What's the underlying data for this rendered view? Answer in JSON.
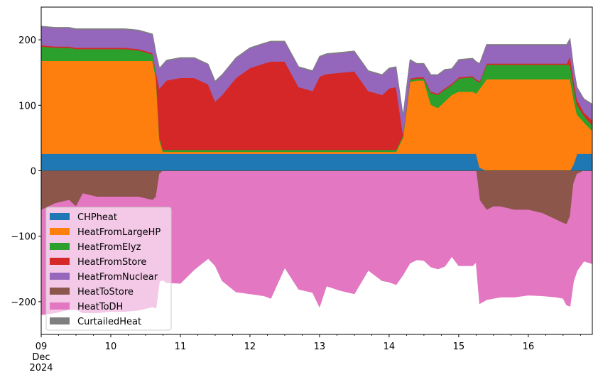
{
  "chart_data": {
    "type": "area",
    "title": "",
    "xlabel": "",
    "ylabel": "",
    "xlim": [
      0,
      7.92
    ],
    "ylim": [
      -250,
      250
    ],
    "x_ticks": [
      {
        "x": 0,
        "lines": [
          "09",
          "Dec",
          "2024"
        ]
      },
      {
        "x": 1,
        "lines": [
          "10"
        ]
      },
      {
        "x": 2,
        "lines": [
          "11"
        ]
      },
      {
        "x": 3,
        "lines": [
          "12"
        ]
      },
      {
        "x": 4,
        "lines": [
          "13"
        ]
      },
      {
        "x": 5,
        "lines": [
          "14"
        ]
      },
      {
        "x": 6,
        "lines": [
          "15"
        ]
      },
      {
        "x": 7,
        "lines": [
          "16"
        ]
      }
    ],
    "y_ticks": [
      {
        "y": 200,
        "label": "200"
      },
      {
        "y": 100,
        "label": "100"
      },
      {
        "y": 0,
        "label": "0"
      },
      {
        "y": -100,
        "label": "−100"
      },
      {
        "y": -200,
        "label": "−200"
      }
    ],
    "legend_position": "lower-left",
    "x": [
      0.0,
      0.2,
      0.4,
      0.5,
      0.6,
      0.8,
      1.0,
      1.2,
      1.4,
      1.6,
      1.65,
      1.7,
      1.75,
      1.8,
      2.0,
      2.2,
      2.4,
      2.5,
      2.6,
      2.8,
      3.0,
      3.2,
      3.3,
      3.5,
      3.7,
      3.9,
      4.0,
      4.1,
      4.3,
      4.5,
      4.7,
      4.9,
      5.0,
      5.1,
      5.2,
      5.3,
      5.4,
      5.5,
      5.6,
      5.7,
      5.8,
      5.9,
      6.0,
      6.2,
      6.25,
      6.3,
      6.4,
      6.5,
      6.6,
      6.8,
      7.0,
      7.2,
      7.4,
      7.5,
      7.55,
      7.6,
      7.65,
      7.7,
      7.8,
      7.92
    ],
    "series": [
      {
        "name": "CHPheat",
        "color": "#1f77b4",
        "sign": "positive",
        "values": [
          26,
          26,
          26,
          26,
          26,
          26,
          26,
          26,
          26,
          26,
          26,
          26,
          26,
          26,
          26,
          26,
          26,
          26,
          26,
          26,
          26,
          26,
          26,
          26,
          26,
          26,
          26,
          26,
          26,
          26,
          26,
          26,
          26,
          26,
          26,
          26,
          26,
          26,
          26,
          26,
          26,
          26,
          26,
          26,
          26,
          5,
          0,
          0,
          0,
          0,
          0,
          0,
          0,
          0,
          0,
          0,
          10,
          26,
          26,
          26
        ]
      },
      {
        "name": "HeatFromLargeHP",
        "color": "#ff7f0e",
        "sign": "positive",
        "values": [
          142,
          142,
          142,
          142,
          142,
          142,
          142,
          142,
          142,
          142,
          115,
          20,
          3,
          3,
          3,
          3,
          3,
          3,
          3,
          3,
          3,
          3,
          3,
          3,
          3,
          3,
          3,
          3,
          3,
          3,
          3,
          3,
          3,
          3,
          25,
          110,
          112,
          112,
          75,
          70,
          80,
          90,
          95,
          95,
          92,
          120,
          140,
          140,
          140,
          140,
          140,
          140,
          140,
          140,
          140,
          140,
          100,
          60,
          48,
          35
        ]
      },
      {
        "name": "HeatFromElyz",
        "color": "#2ca02c",
        "sign": "positive",
        "values": [
          22,
          20,
          20,
          18,
          18,
          18,
          18,
          18,
          16,
          10,
          8,
          5,
          3,
          3,
          3,
          3,
          3,
          3,
          3,
          3,
          3,
          3,
          3,
          3,
          3,
          3,
          3,
          3,
          3,
          3,
          3,
          3,
          3,
          3,
          3,
          3,
          3,
          3,
          18,
          20,
          18,
          15,
          20,
          22,
          20,
          10,
          22,
          22,
          22,
          22,
          22,
          22,
          22,
          22,
          22,
          22,
          20,
          15,
          10,
          8
        ]
      },
      {
        "name": "HeatFromStore",
        "color": "#d62728",
        "sign": "positive",
        "values": [
          2,
          2,
          2,
          2,
          2,
          2,
          2,
          2,
          2,
          2,
          2,
          75,
          100,
          106,
          110,
          110,
          100,
          74,
          84,
          110,
          125,
          132,
          135,
          135,
          96,
          90,
          112,
          116,
          118,
          120,
          90,
          84,
          94,
          96,
          2,
          2,
          2,
          2,
          2,
          2,
          2,
          2,
          2,
          2,
          2,
          2,
          2,
          2,
          2,
          2,
          2,
          2,
          2,
          2,
          2,
          13,
          10,
          8,
          5,
          8
        ]
      },
      {
        "name": "HeatFromNuclear",
        "color": "#9467bd",
        "sign": "positive",
        "values": [
          28,
          28,
          28,
          28,
          28,
          28,
          28,
          28,
          28,
          28,
          28,
          30,
          30,
          30,
          30,
          30,
          30,
          30,
          30,
          30,
          30,
          30,
          30,
          30,
          30,
          30,
          30,
          30,
          30,
          30,
          30,
          30,
          30,
          30,
          28,
          28,
          20,
          20,
          25,
          28,
          28,
          22,
          26,
          26,
          26,
          26,
          28,
          28,
          28,
          28,
          28,
          28,
          28,
          28,
          28,
          26,
          18,
          18,
          20,
          24
        ]
      },
      {
        "name": "CurtailedHeat",
        "color": "#7f7f7f",
        "sign": "positive",
        "values": [
          1,
          1,
          1,
          1,
          1,
          1,
          1,
          1,
          1,
          1,
          1,
          1,
          1,
          1,
          1,
          1,
          1,
          1,
          1,
          1,
          1,
          1,
          1,
          1,
          1,
          1,
          1,
          1,
          1,
          1,
          1,
          1,
          1,
          1,
          1,
          1,
          1,
          1,
          1,
          1,
          1,
          1,
          1,
          1,
          1,
          1,
          1,
          1,
          1,
          1,
          1,
          1,
          1,
          1,
          1,
          1,
          1,
          1,
          1,
          1
        ]
      },
      {
        "name": "HeatToStore",
        "color": "#8c564b",
        "sign": "negative",
        "values": [
          -60,
          -50,
          -45,
          -55,
          -35,
          -40,
          -40,
          -40,
          -40,
          -45,
          -40,
          -5,
          0,
          0,
          0,
          0,
          0,
          0,
          0,
          0,
          0,
          0,
          0,
          0,
          0,
          0,
          0,
          0,
          0,
          0,
          0,
          0,
          0,
          0,
          0,
          0,
          0,
          0,
          0,
          0,
          0,
          0,
          0,
          0,
          0,
          -45,
          -60,
          -55,
          -55,
          -60,
          -60,
          -65,
          -75,
          -80,
          -82,
          -70,
          -20,
          -5,
          0,
          0
        ]
      },
      {
        "name": "HeatToDH",
        "color": "#e377c2",
        "sign": "negative",
        "values": [
          -160,
          -167,
          -167,
          -157,
          -182,
          -177,
          -175,
          -175,
          -173,
          -163,
          -170,
          -164,
          -167,
          -171,
          -172,
          -151,
          -134,
          -145,
          -168,
          -185,
          -188,
          -191,
          -195,
          -148,
          -181,
          -186,
          -208,
          -176,
          -183,
          -188,
          -152,
          -168,
          -170,
          -174,
          -159,
          -141,
          -136,
          -137,
          -147,
          -150,
          -146,
          -131,
          -145,
          -145,
          -140,
          -158,
          -137,
          -140,
          -138,
          -133,
          -130,
          -126,
          -118,
          -115,
          -123,
          -137,
          -149,
          -148,
          -138,
          -142
        ]
      }
    ],
    "legend_entries": [
      {
        "name": "CHPheat",
        "color": "#1f77b4"
      },
      {
        "name": "HeatFromLargeHP",
        "color": "#ff7f0e"
      },
      {
        "name": "HeatFromElyz",
        "color": "#2ca02c"
      },
      {
        "name": "HeatFromStore",
        "color": "#d62728"
      },
      {
        "name": "HeatFromNuclear",
        "color": "#9467bd"
      },
      {
        "name": "HeatToStore",
        "color": "#8c564b"
      },
      {
        "name": "HeatToDH",
        "color": "#e377c2"
      },
      {
        "name": "CurtailedHeat",
        "color": "#7f7f7f"
      }
    ]
  }
}
